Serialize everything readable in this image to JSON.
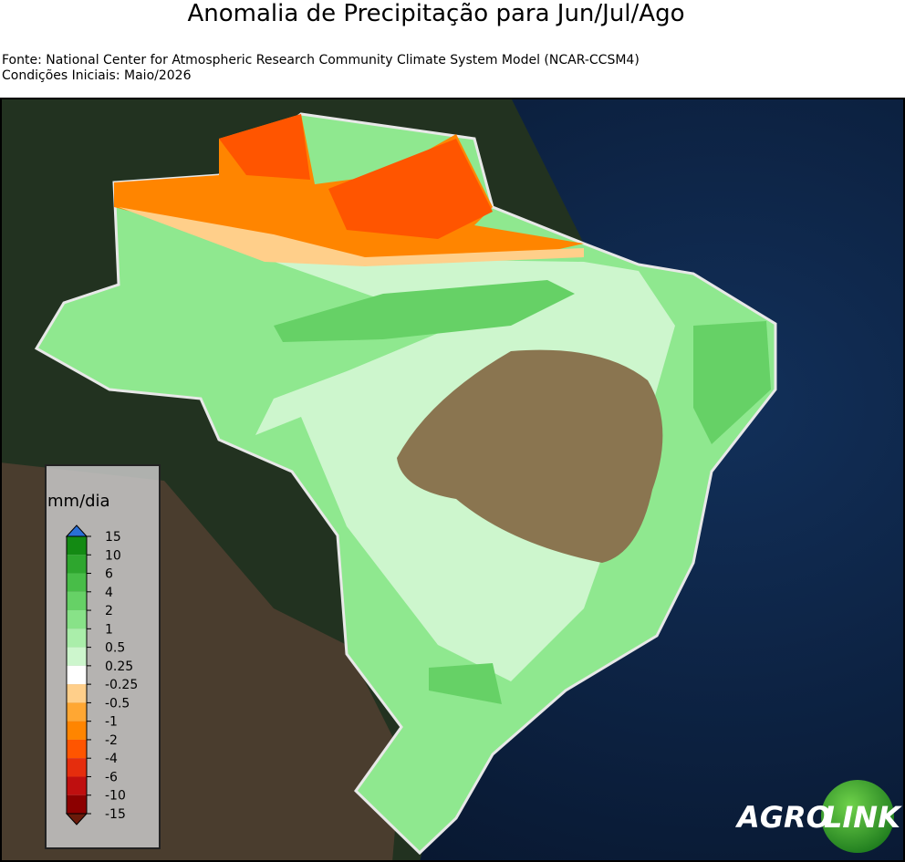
{
  "header": {
    "title": "Anomalia de Precipitação para Jun/Jul/Ago",
    "source": "Fonte: National Center for Atmospheric Research Community Climate System Model (NCAR-CCSM4)",
    "initial_conditions": "Condições Iniciais: Maio/2026"
  },
  "colorbar": {
    "label": "mm/dia",
    "ticks": [
      15,
      10,
      6,
      4,
      2,
      1,
      0.5,
      0.25,
      -0.25,
      -0.5,
      -1,
      -2,
      -4,
      -6,
      -10,
      -15
    ],
    "colors": [
      "#138a13",
      "#2ea62e",
      "#48bd48",
      "#66d166",
      "#88e288",
      "#aaeeaa",
      "#cdf6cd",
      "#ffffff",
      "#ffcf8a",
      "#ffa733",
      "#ff8500",
      "#ff5500",
      "#e52d0d",
      "#bf0f0f",
      "#8c0000"
    ],
    "over_color": "#2a6fd6",
    "under_color": "#6b1a0a"
  },
  "logo": {
    "left": "AGRO",
    "right": "LINK"
  }
}
